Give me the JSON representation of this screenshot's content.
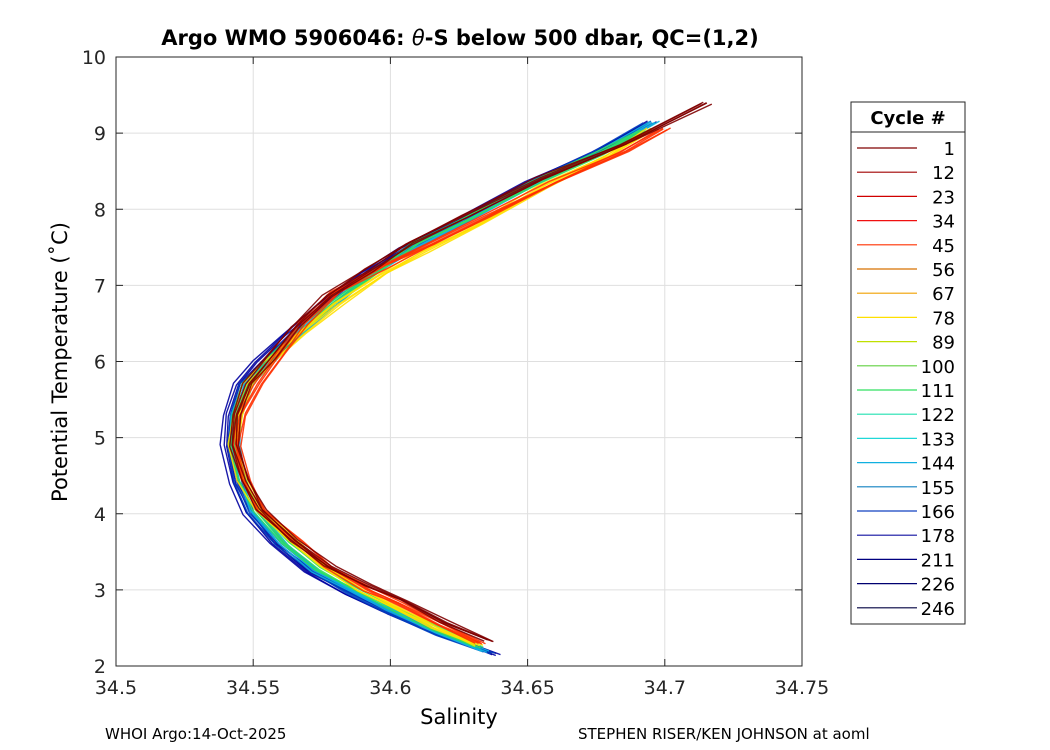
{
  "title": {
    "prefix": "Argo WMO 5906046: ",
    "theta": "θ",
    "suffix": "-S below 500 dbar,  QC=(1,2)"
  },
  "footer": {
    "left": "WHOI Argo:14-Oct-2025",
    "right": "STEPHEN RISER/KEN JOHNSON at aoml"
  },
  "chart_data": {
    "type": "line",
    "title": "Argo WMO 5906046: θ-S below 500 dbar,  QC=(1,2)",
    "xlabel": "Salinity",
    "ylabel": "Potential Temperature (˚C)",
    "xlim": [
      34.5,
      34.75
    ],
    "ylim": [
      2,
      10
    ],
    "xticks": [
      "34.5",
      "34.55",
      "34.6",
      "34.65",
      "34.7",
      "34.75"
    ],
    "yticks": [
      "2",
      "3",
      "4",
      "5",
      "6",
      "7",
      "8",
      "9",
      "10"
    ],
    "grid": true,
    "legend": {
      "title": "Cycle #",
      "placement": "outside-right",
      "entries": [
        {
          "label": "1",
          "color": "#800000"
        },
        {
          "label": "12",
          "color": "#a00000"
        },
        {
          "label": "23",
          "color": "#d00000"
        },
        {
          "label": "34",
          "color": "#f01010"
        },
        {
          "label": "45",
          "color": "#ff3000"
        },
        {
          "label": "56",
          "color": "#d87000"
        },
        {
          "label": "67",
          "color": "#f0a000"
        },
        {
          "label": "78",
          "color": "#ffe000"
        },
        {
          "label": "89",
          "color": "#c0e000"
        },
        {
          "label": "100",
          "color": "#60d040"
        },
        {
          "label": "111",
          "color": "#30e060"
        },
        {
          "label": "122",
          "color": "#20e0b0"
        },
        {
          "label": "133",
          "color": "#20d8d8"
        },
        {
          "label": "144",
          "color": "#10b0e0"
        },
        {
          "label": "155",
          "color": "#1080c0"
        },
        {
          "label": "166",
          "color": "#1040c0"
        },
        {
          "label": "178",
          "color": "#1010a0"
        },
        {
          "label": "211",
          "color": "#000080"
        },
        {
          "label": "226",
          "color": "#000070"
        },
        {
          "label": "246",
          "color": "#000040"
        }
      ]
    },
    "series": [
      {
        "color": "#0000a0",
        "x": [
          34.638,
          34.62,
          34.6,
          34.585,
          34.57,
          34.558,
          34.548,
          34.543,
          34.54,
          34.541,
          34.545,
          34.552,
          34.562,
          34.575,
          34.59,
          34.605,
          34.625,
          34.65,
          34.675,
          34.695
        ],
        "y": [
          2.15,
          2.4,
          2.7,
          2.95,
          3.25,
          3.6,
          4.0,
          4.4,
          4.9,
          5.3,
          5.7,
          6.0,
          6.35,
          6.75,
          7.15,
          7.5,
          7.85,
          8.35,
          8.75,
          9.15
        ]
      },
      {
        "color": "#0040c0",
        "x": [
          34.636,
          34.618,
          34.6,
          34.586,
          34.572,
          34.56,
          34.55,
          34.545,
          34.542,
          34.543,
          34.547,
          34.555,
          34.565,
          34.578,
          34.593,
          34.608,
          34.627,
          34.652,
          34.676,
          34.694
        ],
        "y": [
          2.17,
          2.42,
          2.72,
          2.95,
          3.25,
          3.6,
          4.0,
          4.4,
          4.9,
          5.3,
          5.7,
          6.0,
          6.35,
          6.75,
          7.15,
          7.5,
          7.85,
          8.35,
          8.75,
          9.12
        ]
      },
      {
        "color": "#10b0e0",
        "x": [
          34.634,
          34.617,
          34.6,
          34.587,
          34.573,
          34.561,
          34.55,
          34.546,
          34.543,
          34.544,
          34.548,
          34.556,
          34.566,
          34.579,
          34.594,
          34.609,
          34.628,
          34.653,
          34.677,
          34.696
        ],
        "y": [
          2.2,
          2.45,
          2.75,
          2.97,
          3.25,
          3.6,
          4.05,
          4.45,
          4.9,
          5.3,
          5.7,
          6.0,
          6.35,
          6.75,
          7.15,
          7.5,
          7.85,
          8.35,
          8.75,
          9.15
        ]
      },
      {
        "color": "#30e060",
        "x": [
          34.632,
          34.616,
          34.6,
          34.588,
          34.574,
          34.562,
          34.551,
          34.546,
          34.543,
          34.544,
          34.548,
          34.556,
          34.566,
          34.579,
          34.594,
          34.609,
          34.628,
          34.653,
          34.676,
          34.693
        ],
        "y": [
          2.25,
          2.5,
          2.78,
          3.0,
          3.28,
          3.62,
          4.05,
          4.45,
          4.9,
          5.3,
          5.7,
          6.0,
          6.35,
          6.75,
          7.15,
          7.55,
          7.88,
          8.35,
          8.72,
          9.05
        ]
      },
      {
        "color": "#ffe000",
        "x": [
          34.632,
          34.616,
          34.6,
          34.589,
          34.576,
          34.564,
          34.552,
          34.546,
          34.543,
          34.544,
          34.548,
          34.556,
          34.567,
          34.581,
          34.597,
          34.612,
          34.632,
          34.656,
          34.679,
          34.695
        ],
        "y": [
          2.28,
          2.52,
          2.8,
          3.0,
          3.3,
          3.65,
          4.05,
          4.45,
          4.9,
          5.3,
          5.7,
          6.0,
          6.35,
          6.75,
          7.15,
          7.45,
          7.8,
          8.3,
          8.7,
          9.05
        ]
      },
      {
        "color": "#ff3000",
        "x": [
          34.633,
          34.618,
          34.603,
          34.592,
          34.578,
          34.566,
          34.553,
          34.547,
          34.544,
          34.546,
          34.552,
          34.56,
          34.568,
          34.58,
          34.598,
          34.615,
          34.635,
          34.66,
          34.685,
          34.7
        ],
        "y": [
          2.3,
          2.55,
          2.82,
          3.0,
          3.3,
          3.65,
          4.05,
          4.45,
          4.9,
          5.3,
          5.7,
          6.1,
          6.5,
          6.9,
          7.25,
          7.55,
          7.9,
          8.35,
          8.75,
          9.05
        ]
      },
      {
        "color": "#800000",
        "x": [
          34.636,
          34.62,
          34.605,
          34.592,
          34.578,
          34.565,
          34.553,
          34.547,
          34.543,
          34.544,
          34.548,
          34.556,
          34.565,
          34.577,
          34.592,
          34.607,
          34.627,
          34.655,
          34.685,
          34.715
        ],
        "y": [
          2.33,
          2.58,
          2.85,
          3.05,
          3.3,
          3.65,
          4.05,
          4.45,
          4.9,
          5.3,
          5.7,
          6.05,
          6.45,
          6.85,
          7.2,
          7.55,
          7.9,
          8.4,
          8.85,
          9.4
        ]
      }
    ]
  }
}
